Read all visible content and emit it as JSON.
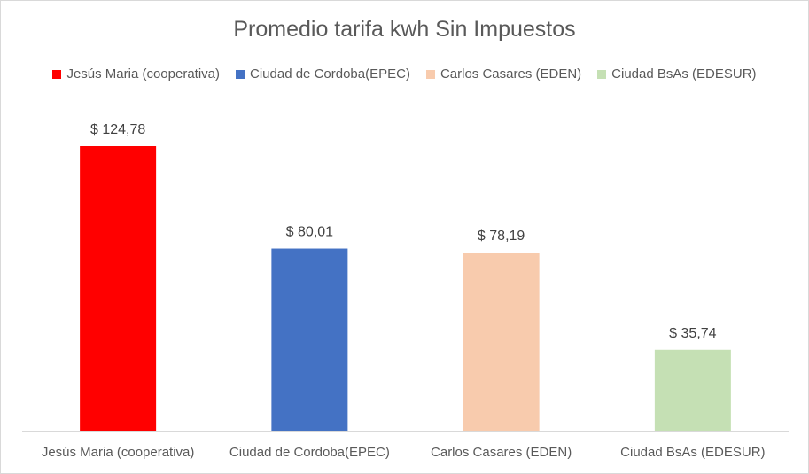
{
  "chart_data": {
    "type": "bar",
    "title": "Promedio tarifa kwh Sin Impuestos",
    "categories": [
      "Jesús Maria (cooperativa)",
      "Ciudad de Cordoba(EPEC)",
      "Carlos Casares (EDEN)",
      "Ciudad BsAs (EDESUR)"
    ],
    "values": [
      124.78,
      80.01,
      78.19,
      35.74
    ],
    "data_labels": [
      "$ 124,78",
      "$ 80,01",
      "$ 78,19",
      "$ 35,74"
    ],
    "colors": [
      "#ff0000",
      "#4472c4",
      "#f8cbad",
      "#c5e0b4"
    ],
    "legend": {
      "position": "top",
      "entries": [
        "Jesús Maria (cooperativa)",
        "Ciudad de Cordoba(EPEC)",
        "Carlos Casares (EDEN)",
        "Ciudad BsAs (EDESUR)"
      ]
    },
    "ylim": [
      0,
      124.78
    ],
    "grid": false,
    "xlabel": "",
    "ylabel": ""
  }
}
